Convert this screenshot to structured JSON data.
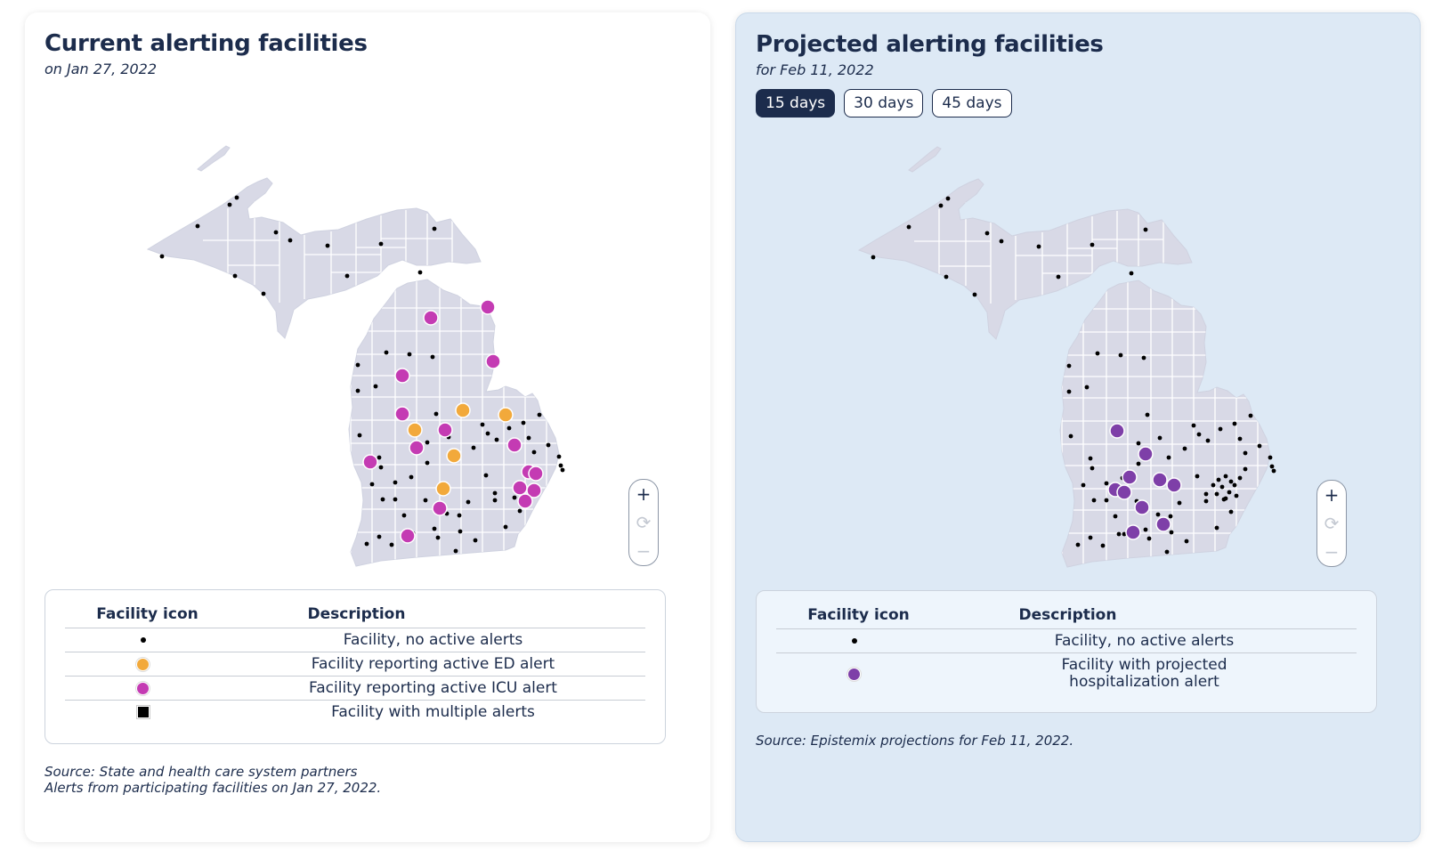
{
  "current": {
    "title": "Current alerting facilities",
    "subtitle": "on Jan 27, 2022",
    "legend": {
      "header_icon": "Facility icon",
      "header_description": "Description",
      "rows": [
        {
          "icon": "black-dot-icon",
          "label": "Facility, no active alerts"
        },
        {
          "icon": "orange-circle-icon",
          "label": "Facility reporting active ED alert"
        },
        {
          "icon": "magenta-circle-icon",
          "label": "Facility reporting active ICU alert"
        },
        {
          "icon": "black-square-icon",
          "label": "Facility with multiple alerts"
        }
      ]
    },
    "source_line1": "Source: State and health care system partners",
    "source_line2": "Alerts from participating facilities on Jan 27, 2022."
  },
  "projected": {
    "title": "Projected alerting facilities",
    "subtitle": "for Feb 11, 2022",
    "tabs": [
      {
        "label": "15 days",
        "active": true
      },
      {
        "label": "30 days",
        "active": false
      },
      {
        "label": "45 days",
        "active": false
      }
    ],
    "legend": {
      "header_icon": "Facility icon",
      "header_description": "Description",
      "rows": [
        {
          "icon": "black-dot-icon",
          "label": "Facility, no active alerts"
        },
        {
          "icon": "purple-circle-icon",
          "label_line1": "Facility with projected",
          "label_line2": "hospitalization alert"
        }
      ]
    },
    "source": "Source: Epistemix projections for Feb 11, 2022."
  },
  "zoom": {
    "plus": "+",
    "reset": "⟳",
    "minus": "−"
  },
  "colors": {
    "navy": "#1c2c4c",
    "map_fill": "#d8d9e6",
    "ed_alert": "#f2a93b",
    "icu_alert": "#c43bb3",
    "projected_alert": "#7e3fa8",
    "projected_panel_bg": "#dde9f5"
  }
}
